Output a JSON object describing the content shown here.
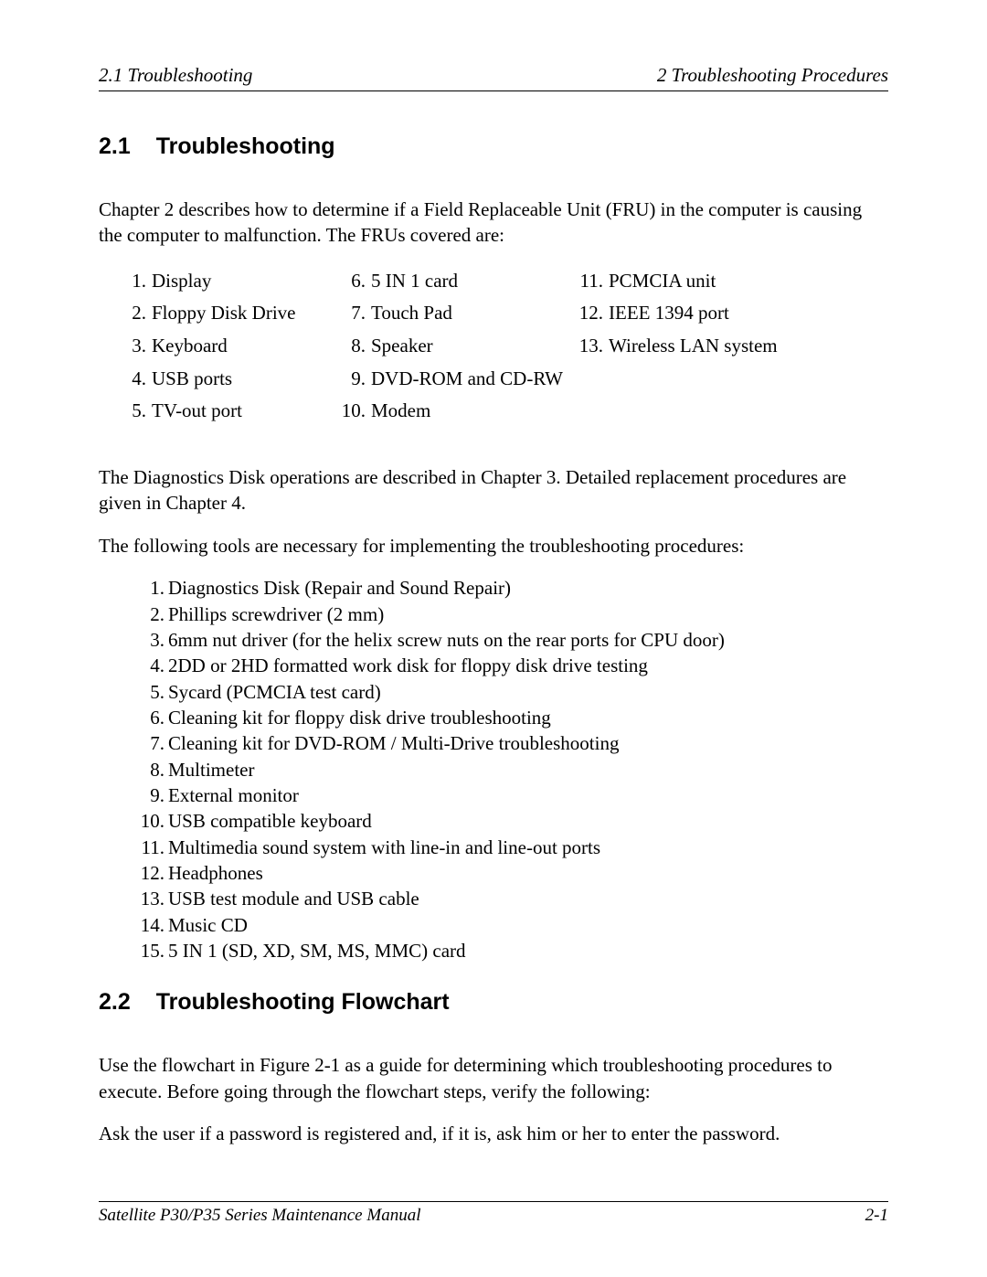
{
  "header": {
    "left": "2.1  Troubleshooting",
    "right": "2  Troubleshooting Procedures"
  },
  "section1": {
    "number": "2.1",
    "title": "Troubleshooting",
    "intro": "Chapter 2 describes how to determine if a Field Replaceable Unit (FRU) in the computer is causing the computer to malfunction.  The FRUs covered are:",
    "fru_rows": [
      {
        "c1n": "1.",
        "c1": "Display",
        "c2n": "6.",
        "c2": "5 IN 1 card",
        "c3n": "11.",
        "c3": "PCMCIA unit"
      },
      {
        "c1n": "2.",
        "c1": "Floppy Disk Drive",
        "c2n": "7.",
        "c2": "Touch Pad",
        "c3n": "12.",
        "c3": "IEEE 1394 port"
      },
      {
        "c1n": "3.",
        "c1": "Keyboard",
        "c2n": "8.",
        "c2": "Speaker",
        "c3n": "13.",
        "c3": "Wireless LAN system"
      },
      {
        "c1n": "4.",
        "c1": "USB ports",
        "c2n": "9.",
        "c2": "DVD-ROM and CD-RW",
        "c3n": "",
        "c3": ""
      },
      {
        "c1n": "5.",
        "c1": "TV-out port",
        "c2n": "10.",
        "c2": "Modem",
        "c3n": "",
        "c3": ""
      }
    ],
    "para2": "The Diagnostics Disk operations are described in Chapter 3.  Detailed replacement procedures are given in Chapter 4.",
    "para3": "The following tools are necessary for implementing the troubleshooting procedures:",
    "tools": [
      {
        "n": "1.",
        "t": "Diagnostics Disk (Repair and Sound Repair)"
      },
      {
        "n": "2.",
        "t": "Phillips screwdriver (2 mm)"
      },
      {
        "n": "3.",
        "t": "6mm nut driver (for the helix screw nuts on the rear ports for CPU door)"
      },
      {
        "n": "4.",
        "t": "2DD or 2HD formatted work disk for floppy disk drive testing"
      },
      {
        "n": "5.",
        "t": "Sycard (PCMCIA test card)"
      },
      {
        "n": "6.",
        "t": "Cleaning kit for floppy disk drive troubleshooting"
      },
      {
        "n": "7.",
        "t": "Cleaning kit for DVD-ROM / Multi-Drive troubleshooting"
      },
      {
        "n": "8.",
        "t": "Multimeter"
      },
      {
        "n": "9.",
        "t": "External monitor"
      },
      {
        "n": "10.",
        "t": "USB compatible keyboard"
      },
      {
        "n": "11.",
        "t": "Multimedia sound system with line-in and line-out ports"
      },
      {
        "n": "12.",
        "t": "Headphones"
      },
      {
        "n": "13.",
        "t": "USB test module and USB cable"
      },
      {
        "n": "14.",
        "t": "Music CD"
      },
      {
        "n": "15.",
        "t": "5 IN 1 (SD, XD, SM, MS, MMC) card"
      }
    ]
  },
  "section2": {
    "number": "2.2",
    "title": "Troubleshooting Flowchart",
    "para1": "Use the flowchart in Figure 2-1 as a guide for determining which troubleshooting procedures to execute.  Before going through the flowchart steps, verify the following:",
    "para2": "Ask the user if a password is registered and, if it is, ask him or her to enter the password."
  },
  "footer": {
    "left": "Satellite P30/P35 Series Maintenance Manual",
    "right": "2-1"
  }
}
